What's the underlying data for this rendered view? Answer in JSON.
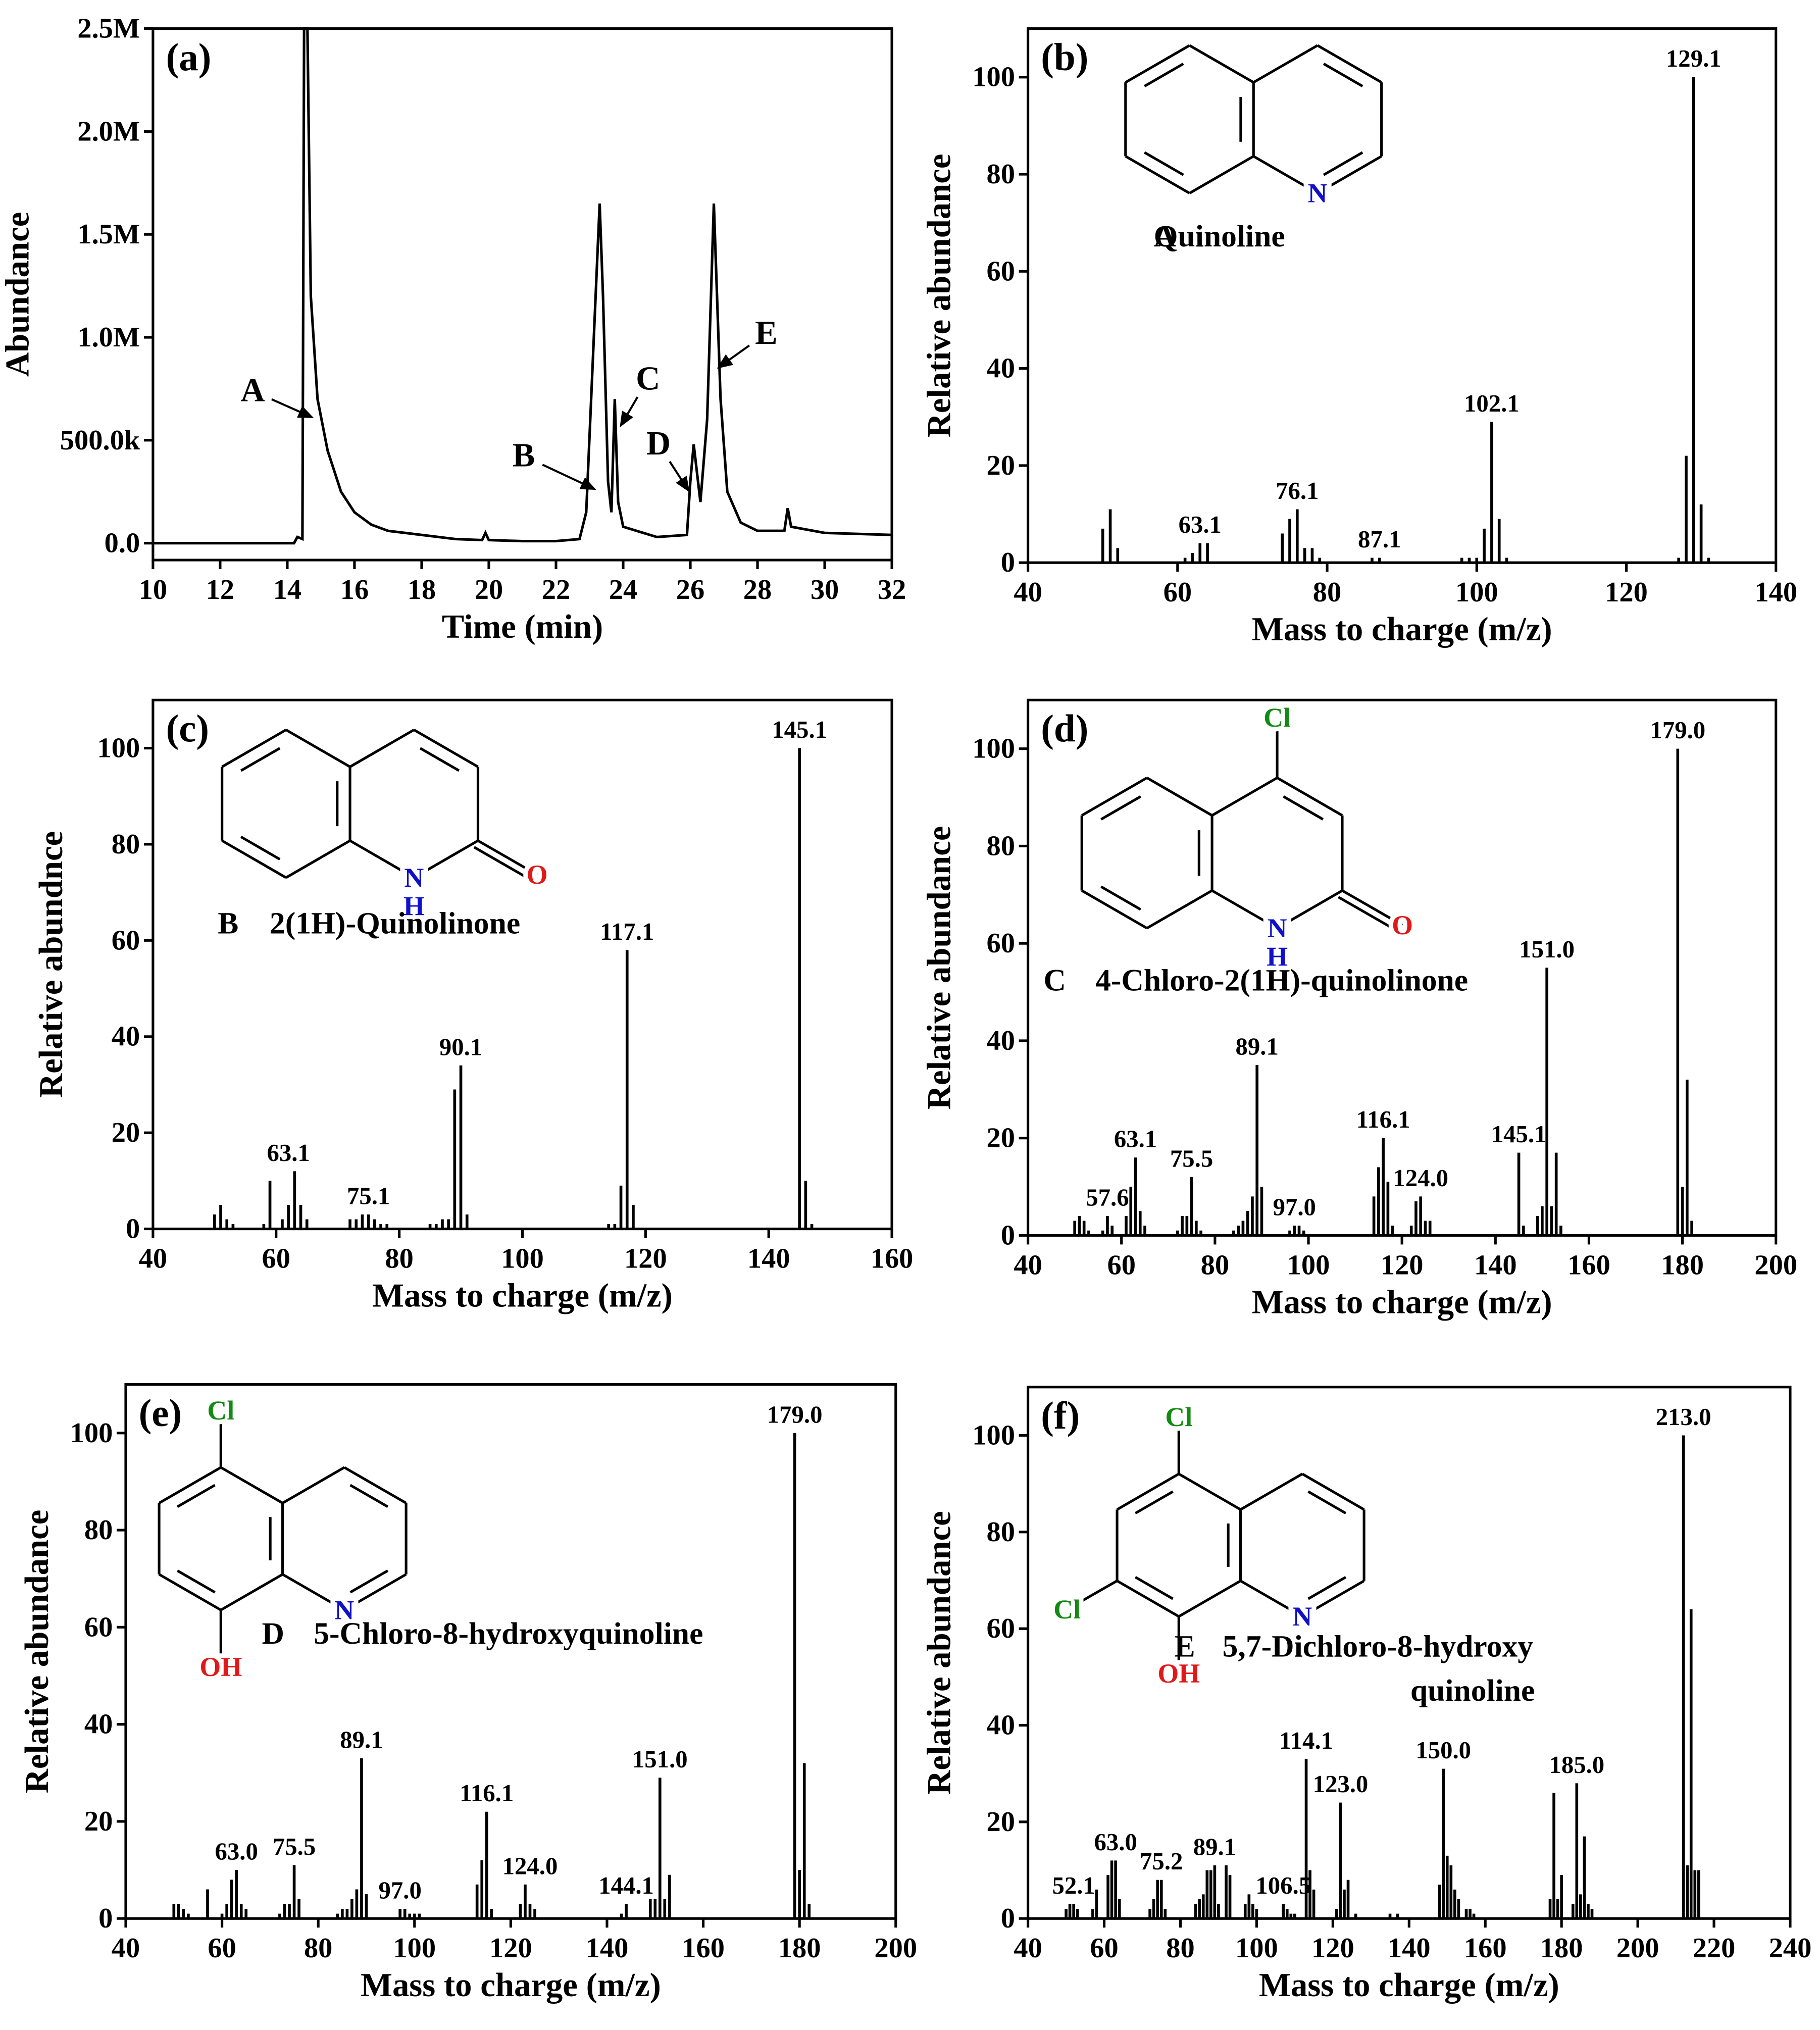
{
  "chart_data": [
    {
      "type": "line",
      "panel_label": "(a)",
      "x_label": "Time (min)",
      "y_label": "Abundance",
      "color": "#000000",
      "xlim": [
        10,
        32
      ],
      "xticks": [
        10,
        12,
        14,
        16,
        18,
        20,
        22,
        24,
        26,
        28,
        30,
        32
      ],
      "ylim": [
        -82000,
        2500000
      ],
      "yticks": [
        {
          "value": 0,
          "label": "0.0"
        },
        {
          "value": 500000,
          "label": "500.0k"
        },
        {
          "value": 1000000,
          "label": "1.0M"
        },
        {
          "value": 1500000,
          "label": "1.5M"
        },
        {
          "value": 2000000,
          "label": "2.0M"
        },
        {
          "value": 2500000,
          "label": "2.5M"
        }
      ],
      "x": [
        10,
        14.2,
        14.3,
        14.45,
        14.5,
        14.6,
        14.7,
        14.9,
        15.2,
        15.6,
        16,
        16.5,
        17,
        18,
        19,
        19.8,
        19.9,
        20,
        21,
        22,
        22.7,
        22.9,
        23.1,
        23.3,
        23.4,
        23.55,
        23.65,
        23.75,
        23.85,
        24,
        25,
        25.9,
        26,
        26.1,
        26.3,
        26.5,
        26.7,
        26.9,
        27.1,
        27.5,
        28,
        28.8,
        28.9,
        29,
        30,
        32
      ],
      "values": [
        0,
        0,
        30000,
        20000,
        2500000,
        2500000,
        1200000,
        700000,
        450000,
        250000,
        150000,
        90000,
        60000,
        40000,
        20000,
        15000,
        50000,
        15000,
        10000,
        10000,
        20000,
        150000,
        900000,
        1650000,
        1200000,
        300000,
        150000,
        700000,
        200000,
        80000,
        30000,
        40000,
        300000,
        480000,
        200000,
        600000,
        1650000,
        700000,
        250000,
        100000,
        60000,
        60000,
        170000,
        80000,
        50000,
        40000
      ],
      "annotations": [
        {
          "text": "A",
          "x": 12.97,
          "y": 740000,
          "arrow": [
            14.79,
            608000
          ]
        },
        {
          "text": "B",
          "x": 21.04,
          "y": 424000,
          "arrow": [
            23.2,
            259000
          ]
        },
        {
          "text": "C",
          "x": 24.74,
          "y": 797000,
          "arrow": [
            23.9,
            563000
          ]
        },
        {
          "text": "D",
          "x": 25.05,
          "y": 481000,
          "arrow": [
            25.98,
            247000
          ]
        },
        {
          "text": "E",
          "x": 28.26,
          "y": 1019000,
          "arrow": [
            26.79,
            848000
          ]
        }
      ]
    },
    {
      "type": "bar",
      "panel_label": "(b)",
      "x_label": "Mass to charge (m/z)",
      "y_label": "Relative abundance",
      "color": "#000000",
      "xlim": [
        40,
        140
      ],
      "xticks": [
        40,
        60,
        80,
        100,
        120,
        140
      ],
      "ylim": [
        0,
        110
      ],
      "yticks": [
        0,
        20,
        40,
        60,
        80,
        100
      ],
      "x": [
        50,
        51,
        52,
        61,
        62,
        63,
        64,
        74,
        75,
        76,
        77,
        78,
        79,
        86,
        87,
        98,
        99,
        100,
        101,
        102,
        103,
        104,
        127,
        128,
        129,
        130,
        131
      ],
      "values": [
        7,
        11,
        3,
        1,
        2,
        4,
        4,
        6,
        9,
        11,
        3,
        3,
        1,
        1,
        1,
        1,
        1,
        1,
        7,
        29,
        9,
        1,
        1,
        22,
        100,
        12,
        1
      ],
      "annotations": [
        {
          "text": "63.1",
          "x": 63,
          "y": 4
        },
        {
          "text": "76.1",
          "x": 76,
          "y": 11
        },
        {
          "text": "87.1",
          "x": 87,
          "y": 1
        },
        {
          "text": "102.1",
          "x": 102,
          "y": 29
        },
        {
          "text": "129.1",
          "x": 129,
          "y": 100
        }
      ],
      "structure": {
        "id": "A",
        "name": [
          "Quinoline"
        ],
        "atoms": [
          {
            "text": "N",
            "color": "#1010c8"
          }
        ]
      }
    },
    {
      "type": "bar",
      "panel_label": "(c)",
      "x_label": "Mass to charge (m/z)",
      "y_label": "Relative abundnce",
      "color": "#000000",
      "xlim": [
        40,
        160
      ],
      "xticks": [
        40,
        60,
        80,
        100,
        120,
        140,
        160
      ],
      "ylim": [
        0,
        110
      ],
      "yticks": [
        0,
        20,
        40,
        60,
        80,
        100
      ],
      "x": [
        50,
        51,
        52,
        53,
        58,
        59,
        61,
        62,
        63,
        64,
        65,
        72,
        73,
        74,
        75,
        76,
        77,
        78,
        85,
        86,
        87,
        88,
        89,
        90,
        91,
        114,
        115,
        116,
        117,
        118,
        145,
        146,
        147
      ],
      "values": [
        3,
        5,
        2,
        1,
        1,
        10,
        2,
        5,
        12,
        5,
        2,
        2,
        2,
        3,
        3,
        2,
        1,
        1,
        1,
        1,
        2,
        2,
        29,
        34,
        3,
        1,
        1,
        9,
        58,
        5,
        100,
        10,
        1
      ],
      "annotations": [
        {
          "text": "63.1",
          "x": 62,
          "y": 12
        },
        {
          "text": "75.1",
          "x": 75,
          "y": 3
        },
        {
          "text": "90.1",
          "x": 90,
          "y": 34
        },
        {
          "text": "117.1",
          "x": 117,
          "y": 58
        },
        {
          "text": "145.1",
          "x": 145,
          "y": 100
        }
      ],
      "structure": {
        "id": "B",
        "name": [
          "2(1H)-Quinolinone"
        ],
        "atoms": [
          {
            "text": "N",
            "color": "#1010c8"
          },
          {
            "text": "H",
            "color": "#1010c8"
          },
          {
            "text": "O",
            "color": "#e01818"
          }
        ]
      }
    },
    {
      "type": "bar",
      "panel_label": "(d)",
      "x_label": "Mass to charge (m/z)",
      "y_label": "Relative abundance",
      "color": "#000000",
      "xlim": [
        40,
        200
      ],
      "xticks": [
        40,
        60,
        80,
        100,
        120,
        140,
        160,
        180,
        200
      ],
      "ylim": [
        0,
        110
      ],
      "yticks": [
        0,
        20,
        40,
        60,
        80,
        100
      ],
      "x": [
        50,
        51,
        52,
        53,
        56,
        57,
        58,
        61,
        62,
        63,
        64,
        65,
        72,
        73,
        74,
        75,
        76,
        77,
        84,
        85,
        86,
        87,
        88,
        89,
        90,
        96,
        97,
        98,
        99,
        114,
        115,
        116,
        117,
        118,
        122,
        123,
        124,
        125,
        126,
        145,
        146,
        149,
        150,
        151,
        152,
        153,
        154,
        179,
        180,
        181,
        182
      ],
      "values": [
        3,
        4,
        3,
        1,
        1,
        4,
        2,
        4,
        10,
        16,
        5,
        2,
        1,
        4,
        4,
        12,
        3,
        1,
        1,
        2,
        3,
        5,
        8,
        35,
        10,
        1,
        2,
        2,
        1,
        8,
        14,
        20,
        11,
        2,
        2,
        7,
        8,
        3,
        3,
        17,
        2,
        4,
        6,
        55,
        6,
        17,
        2,
        100,
        10,
        32,
        3
      ],
      "annotations": [
        {
          "text": "57.6",
          "x": 57,
          "y": 4
        },
        {
          "text": "63.1",
          "x": 63,
          "y": 16
        },
        {
          "text": "75.5",
          "x": 75,
          "y": 12
        },
        {
          "text": "89.1",
          "x": 89,
          "y": 35
        },
        {
          "text": "97.0",
          "x": 97,
          "y": 2
        },
        {
          "text": "116.1",
          "x": 116,
          "y": 20
        },
        {
          "text": "124.0",
          "x": 124,
          "y": 8
        },
        {
          "text": "145.1",
          "x": 145,
          "y": 17
        },
        {
          "text": "151.0",
          "x": 151,
          "y": 55
        },
        {
          "text": "179.0",
          "x": 179,
          "y": 100
        }
      ],
      "structure": {
        "id": "C",
        "name": [
          "4-Chloro-2(1H)-quinolinone"
        ],
        "atoms": [
          {
            "text": "Cl",
            "color": "#138a13"
          },
          {
            "text": "N",
            "color": "#1010c8"
          },
          {
            "text": "H",
            "color": "#1010c8"
          },
          {
            "text": "O",
            "color": "#e01818"
          }
        ]
      }
    },
    {
      "type": "bar",
      "panel_label": "(e)",
      "x_label": "Mass to charge (m/z)",
      "y_label": "Relative abundance",
      "color": "#000000",
      "xlim": [
        40,
        200
      ],
      "xticks": [
        40,
        60,
        80,
        100,
        120,
        140,
        160,
        180,
        200
      ],
      "ylim": [
        0,
        110
      ],
      "yticks": [
        0,
        20,
        40,
        60,
        80,
        100
      ],
      "x": [
        50,
        51,
        52,
        53,
        57,
        60,
        61,
        62,
        63,
        64,
        65,
        72,
        73,
        74,
        75,
        76,
        84,
        85,
        86,
        87,
        88,
        89,
        90,
        97,
        98,
        99,
        100,
        101,
        113,
        114,
        115,
        116,
        122,
        123,
        124,
        125,
        143,
        144,
        149,
        150,
        151,
        152,
        153,
        179,
        180,
        181,
        182
      ],
      "values": [
        3,
        3,
        2,
        1,
        6,
        1,
        3,
        8,
        10,
        3,
        2,
        1,
        3,
        3,
        11,
        4,
        1,
        2,
        2,
        4,
        6,
        33,
        5,
        2,
        2,
        1,
        1,
        1,
        7,
        12,
        22,
        2,
        3,
        7,
        3,
        2,
        1,
        3,
        4,
        4,
        29,
        4,
        9,
        100,
        10,
        32,
        3
      ],
      "annotations": [
        {
          "text": "63.0",
          "x": 63,
          "y": 10
        },
        {
          "text": "75.5",
          "x": 75,
          "y": 11
        },
        {
          "text": "89.1",
          "x": 89,
          "y": 33
        },
        {
          "text": "97.0",
          "x": 97,
          "y": 2
        },
        {
          "text": "116.1",
          "x": 115,
          "y": 22
        },
        {
          "text": "124.0",
          "x": 124,
          "y": 7
        },
        {
          "text": "144.1",
          "x": 144,
          "y": 3
        },
        {
          "text": "151.0",
          "x": 151,
          "y": 29
        },
        {
          "text": "179.0",
          "x": 179,
          "y": 100
        }
      ],
      "structure": {
        "id": "D",
        "name": [
          "5-Chloro-8-hydroxyquinoline"
        ],
        "atoms": [
          {
            "text": "Cl",
            "color": "#138a13"
          },
          {
            "text": "N",
            "color": "#1010c8"
          },
          {
            "text": "OH",
            "color": "#e01818"
          }
        ]
      }
    },
    {
      "type": "bar",
      "panel_label": "(f)",
      "x_label": "Mass to charge (m/z)",
      "y_label": "Relative abundance",
      "color": "#000000",
      "xlim": [
        40,
        240
      ],
      "xticks": [
        40,
        60,
        80,
        100,
        120,
        140,
        160,
        180,
        200,
        220,
        240
      ],
      "ylim": [
        0,
        110
      ],
      "yticks": [
        0,
        20,
        40,
        60,
        80,
        100
      ],
      "x": [
        50,
        51,
        52,
        53,
        57,
        58,
        61,
        62,
        63,
        64,
        72,
        73,
        74,
        75,
        76,
        84,
        85,
        86,
        87,
        88,
        89,
        90,
        92,
        93,
        97,
        98,
        99,
        100,
        107,
        108,
        109,
        110,
        113,
        114,
        115,
        121,
        122,
        123,
        124,
        126,
        135,
        137,
        148,
        149,
        150,
        151,
        152,
        153,
        155,
        156,
        157,
        177,
        178,
        179,
        180,
        183,
        184,
        185,
        186,
        187,
        188,
        212,
        213,
        214,
        215,
        216
      ],
      "values": [
        2,
        3,
        3,
        2,
        2,
        6,
        9,
        12,
        12,
        4,
        2,
        4,
        8,
        8,
        2,
        3,
        4,
        5,
        10,
        10,
        11,
        3,
        11,
        9,
        3,
        5,
        3,
        2,
        3,
        2,
        1,
        1,
        33,
        10,
        6,
        2,
        24,
        6,
        8,
        1,
        1,
        1,
        7,
        31,
        13,
        11,
        6,
        4,
        2,
        2,
        1,
        4,
        26,
        4,
        9,
        3,
        28,
        5,
        17,
        3,
        2,
        100,
        11,
        64,
        10,
        10
      ],
      "annotations": [
        {
          "text": "52.1",
          "x": 52,
          "y": 3
        },
        {
          "text": "63.0",
          "x": 63,
          "y": 12
        },
        {
          "text": "75.2",
          "x": 75,
          "y": 8
        },
        {
          "text": "89.1",
          "x": 89,
          "y": 11
        },
        {
          "text": "106.5",
          "x": 107,
          "y": 3
        },
        {
          "text": "114.1",
          "x": 113,
          "y": 33
        },
        {
          "text": "123.0",
          "x": 122,
          "y": 24
        },
        {
          "text": "150.0",
          "x": 149,
          "y": 31
        },
        {
          "text": "185.0",
          "x": 184,
          "y": 28
        },
        {
          "text": "213.0",
          "x": 212,
          "y": 100
        }
      ],
      "structure": {
        "id": "E",
        "name": [
          "5,7-Dichloro-8-hydroxy",
          "quinoline"
        ],
        "atoms": [
          {
            "text": "Cl",
            "color": "#138a13"
          },
          {
            "text": "Cl",
            "color": "#138a13"
          },
          {
            "text": "N",
            "color": "#1010c8"
          },
          {
            "text": "OH",
            "color": "#e01818"
          }
        ]
      }
    }
  ]
}
